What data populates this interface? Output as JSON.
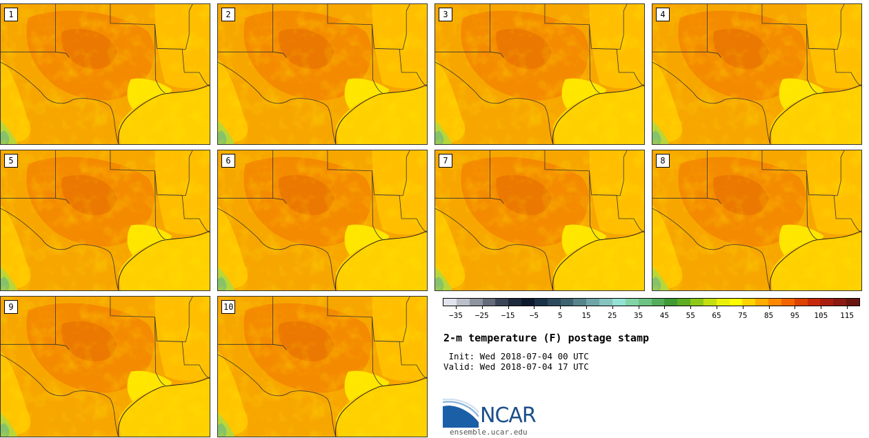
{
  "panels": [
    {
      "number": "1"
    },
    {
      "number": "2"
    },
    {
      "number": "3"
    },
    {
      "number": "4"
    },
    {
      "number": "5"
    },
    {
      "number": "6"
    },
    {
      "number": "7"
    },
    {
      "number": "8"
    },
    {
      "number": "9"
    },
    {
      "number": "10"
    }
  ],
  "colorbar": {
    "colors": [
      "#e1e4ec",
      "#bbbfc9",
      "#8e93a0",
      "#646b79",
      "#3c4558",
      "#1e2a3d",
      "#0d1a2e",
      "#1c3247",
      "#2d4a5d",
      "#3e6270",
      "#56838c",
      "#6fa4a8",
      "#86c4bf",
      "#93e2d4",
      "#82d4a6",
      "#6dc383",
      "#55ad5b",
      "#3f9a36",
      "#5ead22",
      "#8ec917",
      "#c3df0f",
      "#eaf007",
      "#fffc00",
      "#ffd300",
      "#ffad00",
      "#fc8800",
      "#f36400",
      "#de4200",
      "#c62a0a",
      "#a81f0f",
      "#8a1a12",
      "#6a1610"
    ],
    "tick_labels": [
      "−35",
      "−25",
      "−15",
      "−5",
      "5",
      "15",
      "25",
      "35",
      "45",
      "55",
      "65",
      "75",
      "85",
      "95",
      "105",
      "115"
    ]
  },
  "title": "2-m temperature (F) postage stamp",
  "init_label": " Init: Wed 2018-07-04 00 UTC",
  "valid_label": "Valid: Wed 2018-07-04 17 UTC",
  "logo": {
    "name": "NCAR",
    "url": "ensemble.ucar.edu",
    "color": "#1b4f8a"
  }
}
